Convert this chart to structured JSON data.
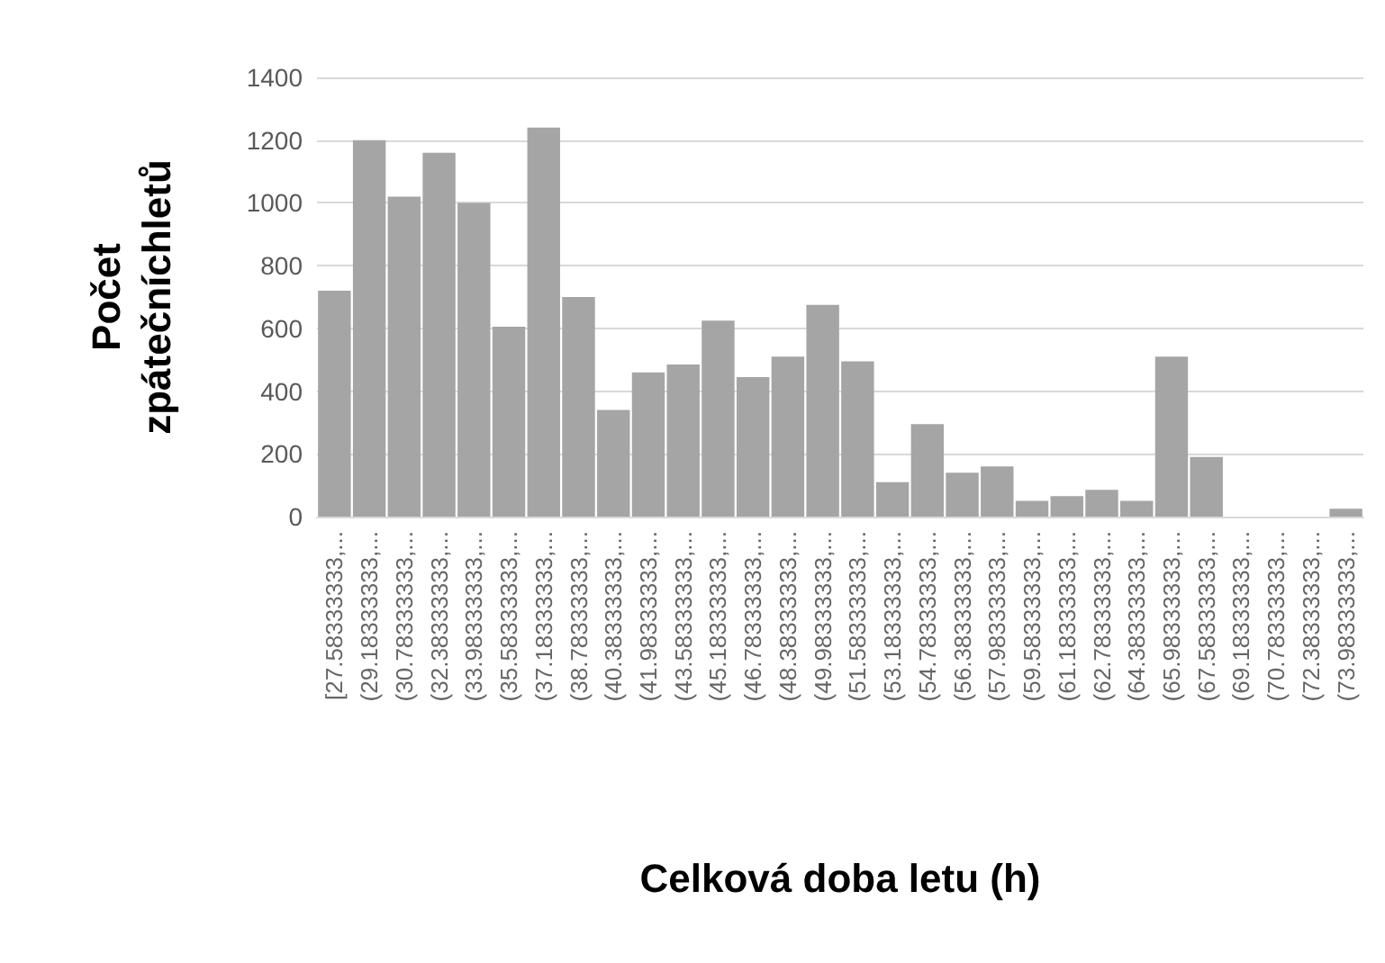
{
  "chart_data": {
    "type": "bar",
    "xlabel": "Celková doba letu (h)",
    "ylabel": "Počet zpátečníchletů",
    "categories": [
      "[27.58333333,...",
      "(29.18333333,...",
      "(30.78333333,...",
      "(32.38333333,...",
      "(33.98333333,...",
      "(35.58333333,...",
      "(37.18333333,...",
      "(38.78333333,...",
      "(40.38333333,...",
      "(41.98333333,...",
      "(43.58333333,...",
      "(45.18333333,...",
      "(46.78333333,...",
      "(48.38333333,...",
      "(49.98333333,...",
      "(51.58333333,...",
      "(53.18333333,...",
      "(54.78333333,...",
      "(56.38333333,...",
      "(57.98333333,...",
      "(59.58333333,...",
      "(61.18333333,...",
      "(62.78333333,...",
      "(64.38333333,...",
      "(65.98333333,...",
      "(67.58333333,...",
      "(69.18333333,...",
      "(70.78333333,...",
      "(72.38333333,...",
      "(73.98333333,..."
    ],
    "values": [
      720,
      1200,
      1020,
      1160,
      1000,
      605,
      1240,
      700,
      340,
      460,
      485,
      625,
      445,
      510,
      675,
      495,
      110,
      295,
      140,
      160,
      50,
      65,
      85,
      50,
      510,
      190,
      0,
      0,
      0,
      25
    ],
    "color": "#a5a5a5",
    "ylim": [
      0,
      1400
    ],
    "yticks": [
      0,
      200,
      400,
      600,
      800,
      1000,
      1200,
      1400
    ],
    "grid": "y"
  }
}
